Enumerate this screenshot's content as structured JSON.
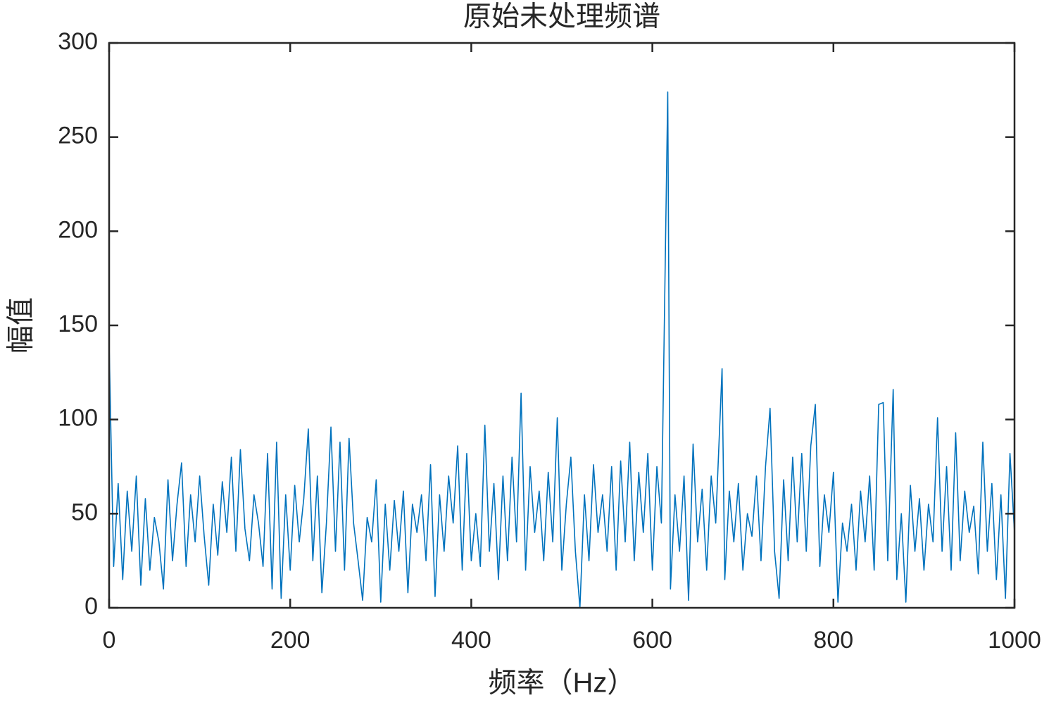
{
  "chart_data": {
    "type": "line",
    "title": "原始未处理频谱",
    "x_label": "频率（Hz）",
    "y_label": "幅值",
    "xlim": [
      0,
      1000
    ],
    "xticks": [
      0,
      200,
      400,
      600,
      800,
      1000
    ],
    "ylim": [
      0,
      300
    ],
    "yticks": [
      0,
      50,
      100,
      150,
      200,
      250,
      300
    ],
    "box": true,
    "series": [
      {
        "color": "#0072BD",
        "x": [
          0,
          5,
          10,
          15,
          20,
          25,
          30,
          35,
          40,
          45,
          50,
          55,
          60,
          65,
          70,
          75,
          80,
          85,
          90,
          95,
          100,
          105,
          110,
          115,
          120,
          125,
          130,
          135,
          140,
          145,
          150,
          155,
          160,
          165,
          170,
          175,
          180,
          185,
          190,
          195,
          200,
          205,
          210,
          215,
          220,
          225,
          230,
          235,
          240,
          245,
          250,
          255,
          260,
          265,
          270,
          275,
          280,
          285,
          290,
          295,
          300,
          305,
          310,
          315,
          320,
          325,
          330,
          335,
          340,
          345,
          350,
          355,
          360,
          365,
          370,
          375,
          380,
          385,
          390,
          395,
          400,
          405,
          410,
          415,
          420,
          425,
          430,
          435,
          440,
          445,
          450,
          455,
          460,
          465,
          470,
          475,
          480,
          485,
          490,
          495,
          500,
          505,
          510,
          515,
          520,
          525,
          530,
          535,
          540,
          545,
          550,
          555,
          560,
          565,
          570,
          575,
          580,
          585,
          590,
          595,
          600,
          605,
          610,
          617,
          620,
          625,
          630,
          635,
          640,
          645,
          650,
          655,
          660,
          665,
          670,
          677,
          680,
          685,
          690,
          695,
          700,
          705,
          710,
          715,
          720,
          725,
          730,
          735,
          740,
          745,
          750,
          755,
          760,
          765,
          770,
          775,
          780,
          785,
          790,
          795,
          800,
          805,
          810,
          815,
          820,
          825,
          830,
          835,
          840,
          845,
          850,
          855,
          860,
          866,
          870,
          875,
          880,
          885,
          890,
          895,
          900,
          905,
          910,
          915,
          920,
          925,
          930,
          935,
          940,
          945,
          950,
          955,
          960,
          965,
          970,
          975,
          980,
          985,
          990,
          995,
          1000
        ],
        "values": [
          140,
          22,
          66,
          15,
          62,
          30,
          70,
          12,
          58,
          20,
          48,
          35,
          10,
          68,
          25,
          55,
          77,
          22,
          60,
          35,
          70,
          38,
          12,
          55,
          28,
          67,
          40,
          80,
          30,
          84,
          42,
          25,
          60,
          45,
          22,
          82,
          10,
          88,
          5,
          60,
          20,
          65,
          35,
          58,
          95,
          25,
          70,
          8,
          45,
          96,
          30,
          88,
          20,
          90,
          45,
          25,
          4,
          48,
          35,
          68,
          3,
          55,
          20,
          57,
          30,
          62,
          8,
          55,
          40,
          60,
          25,
          76,
          6,
          60,
          30,
          70,
          45,
          86,
          20,
          82,
          25,
          50,
          22,
          97,
          30,
          66,
          15,
          70,
          25,
          80,
          35,
          114,
          20,
          75,
          40,
          62,
          25,
          72,
          35,
          101,
          20,
          55,
          80,
          30,
          0,
          60,
          25,
          76,
          40,
          60,
          30,
          75,
          20,
          78,
          35,
          88,
          25,
          72,
          40,
          82,
          20,
          75,
          45,
          274,
          10,
          60,
          30,
          70,
          4,
          87,
          35,
          63,
          20,
          70,
          45,
          127,
          15,
          62,
          35,
          66,
          20,
          50,
          38,
          70,
          25,
          75,
          106,
          30,
          5,
          68,
          25,
          80,
          35,
          82,
          30,
          86,
          108,
          22,
          60,
          40,
          72,
          3,
          45,
          30,
          55,
          20,
          62,
          35,
          70,
          20,
          108,
          109,
          25,
          116,
          15,
          50,
          3,
          65,
          30,
          58,
          20,
          55,
          35,
          101,
          30,
          75,
          20,
          93,
          25,
          62,
          40,
          54,
          18,
          88,
          30,
          66,
          15,
          60,
          5,
          82,
          40
        ]
      }
    ]
  }
}
